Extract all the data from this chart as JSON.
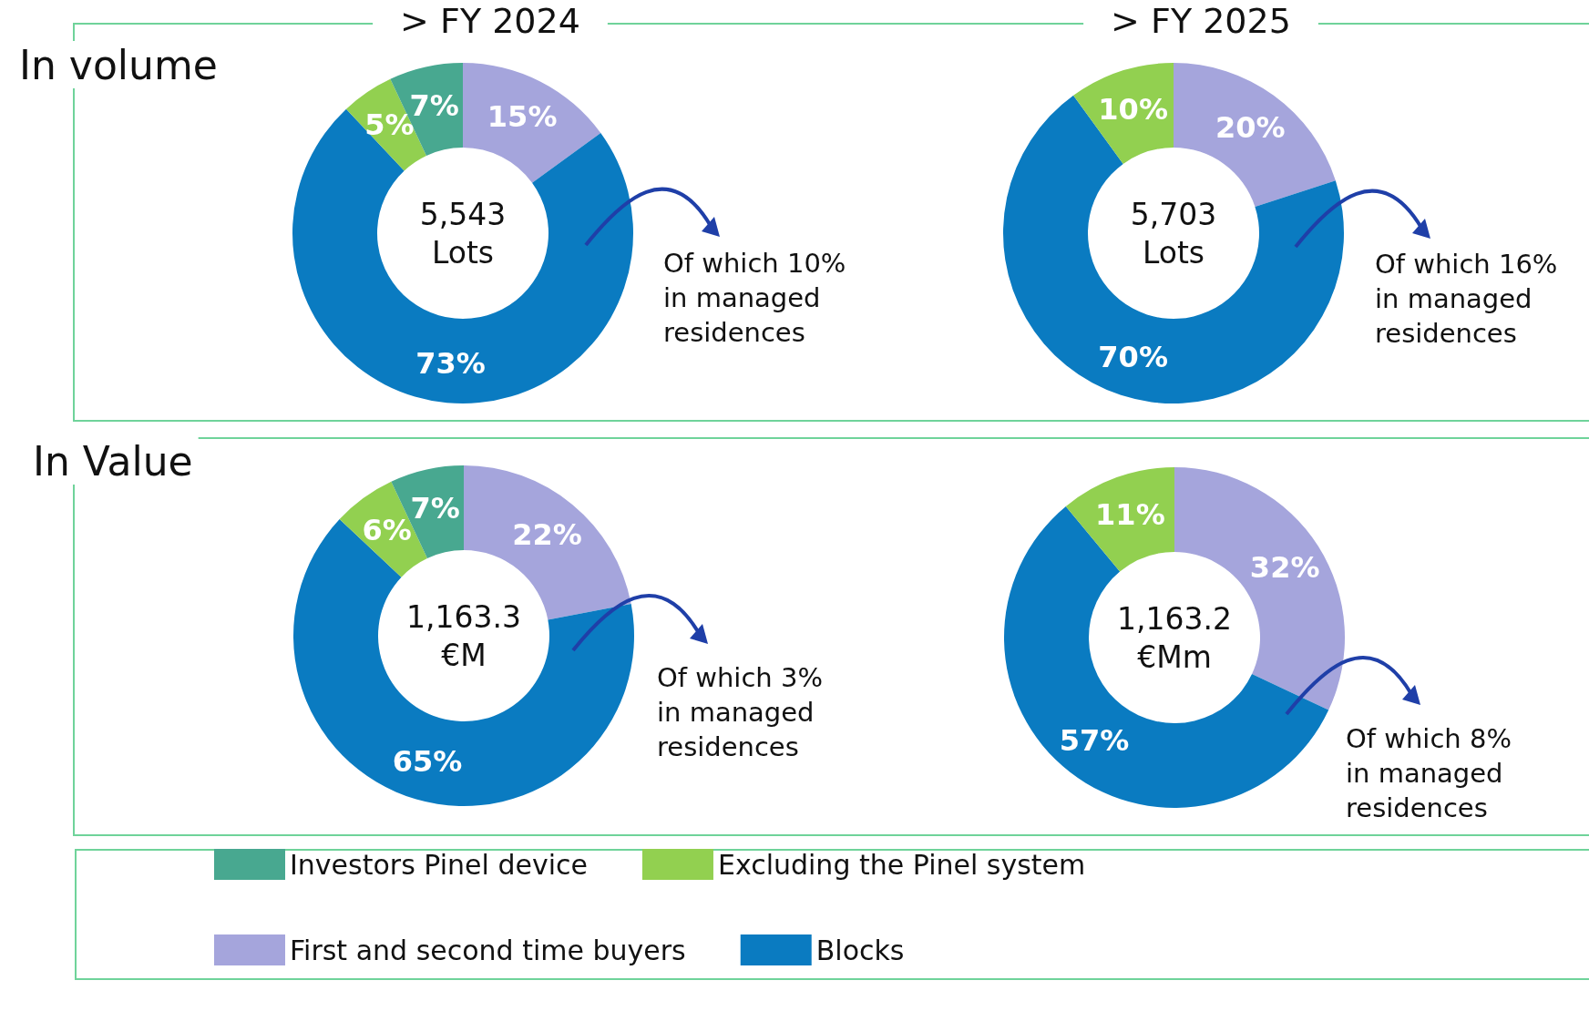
{
  "chart_data": [
    {
      "type": "donut",
      "title": "> FY 2024",
      "subtitle": "In volume",
      "categories": [
        "First and second time buyers",
        "Blocks",
        "Excluding the Pinel system",
        "Investors Pinel device"
      ],
      "values": [
        15,
        73,
        5,
        7
      ],
      "colors": [
        "#a5a5dc",
        "#0a7bc1",
        "#92d050",
        "#48a890"
      ],
      "value_labels": [
        "15%",
        "73%",
        "5%",
        "7%"
      ],
      "legend": "bottom",
      "annotations": [
        "5,543\nLots",
        "Of which 10%\nin managed\nresidences"
      ]
    },
    {
      "type": "donut",
      "title": "> FY 2025",
      "categories": [
        null,
        null,
        null
      ],
      "values": [
        20,
        70,
        10
      ],
      "colors": [
        "#a5a5dc",
        "#0a7bc1",
        "#92d050"
      ],
      "value_labels": [
        "20%",
        "70%",
        "10%"
      ],
      "annotations": [
        "5,703\nLots",
        "Of which 16%\nin managed\nresidences"
      ]
    },
    {
      "type": "donut",
      "subtitle": "In Value",
      "categories": [
        null,
        null,
        null,
        null
      ],
      "values": [
        22,
        65,
        6,
        7
      ],
      "colors": [
        "#a5a5dc",
        "#0a7bc1",
        "#92d050",
        "#48a890"
      ],
      "value_labels": [
        "22%",
        "65%",
        "6%",
        "7%"
      ],
      "annotations": [
        "1,163.3\n€M",
        "Of which 3%\nin managed\nresidences"
      ]
    },
    {
      "type": "donut",
      "categories": [
        null,
        null,
        null
      ],
      "values": [
        32,
        57,
        11
      ],
      "colors": [
        "#a5a5dc",
        "#0a7bc1",
        "#92d050"
      ],
      "value_labels": [
        "32%",
        "57%",
        "11%"
      ],
      "annotations": [
        "1,163.2\n€Mm",
        "Of which 8%\nin managed\nresidences"
      ]
    }
  ]
}
